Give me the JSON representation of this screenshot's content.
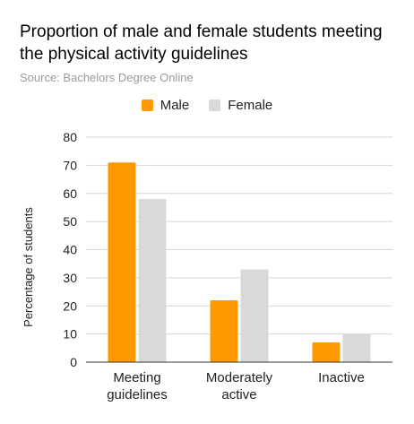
{
  "chart_data": {
    "type": "bar",
    "title": "Proportion of male and female students meeting the physical activity guidelines",
    "subtitle": "Source: Bachelors Degree Online",
    "ylabel": "Percentage of students",
    "xlabel": "",
    "categories": [
      [
        "Meeting",
        "guidelines"
      ],
      [
        "Moderately",
        "active"
      ],
      [
        "Inactive"
      ]
    ],
    "series": [
      {
        "name": "Male",
        "color": "#ff9900",
        "values": [
          71,
          22,
          7
        ]
      },
      {
        "name": "Female",
        "color": "#d9d9d9",
        "values": [
          58,
          33,
          10
        ]
      }
    ],
    "ylim": [
      0,
      80
    ],
    "yticks": [
      0,
      10,
      20,
      30,
      40,
      50,
      60,
      70,
      80
    ],
    "grid": true,
    "legend_position": "top-center"
  }
}
